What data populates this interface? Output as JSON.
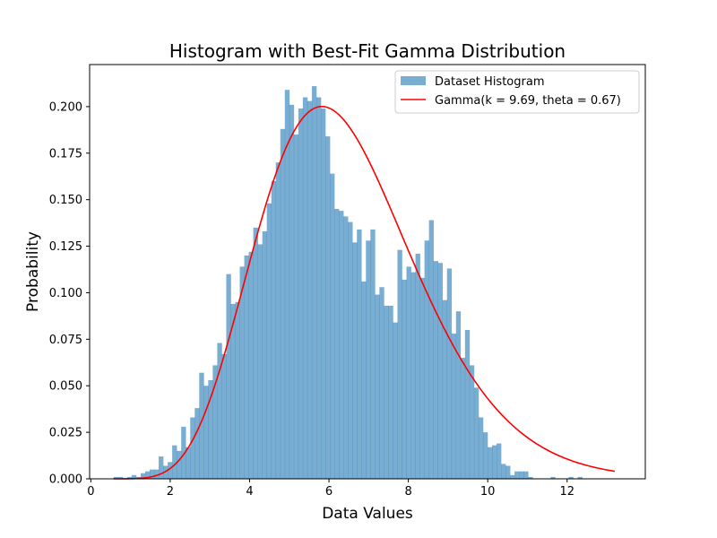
{
  "chart_data": {
    "type": "bar",
    "title": "Histogram with Best-Fit Gamma Distribution",
    "xlabel": "Data Values",
    "ylabel": "Probability",
    "xlim": [
      -0.03,
      13.97
    ],
    "ylim": [
      0,
      0.2226
    ],
    "xticks": [
      0,
      2,
      4,
      6,
      8,
      10,
      12
    ],
    "yticks": [
      0.0,
      0.025,
      0.05,
      0.075,
      0.1,
      0.125,
      0.15,
      0.175,
      0.2
    ],
    "ytick_labels": [
      "0.000",
      "0.025",
      "0.050",
      "0.075",
      "0.100",
      "0.125",
      "0.150",
      "0.175",
      "0.200"
    ],
    "grid": false,
    "legend_position": "top-right",
    "colors": {
      "histogram": "#1f77b4",
      "histogram_alpha": 0.6,
      "curve": "#ff0000"
    },
    "series": [
      {
        "name": "Dataset Histogram",
        "kind": "histogram",
        "x_start": 0.575,
        "bin_width": 0.1135,
        "values": [
          0.001,
          0.001,
          0.0,
          0.001,
          0.002,
          0.001,
          0.003,
          0.004,
          0.005,
          0.005,
          0.012,
          0.007,
          0.009,
          0.018,
          0.015,
          0.028,
          0.017,
          0.033,
          0.038,
          0.057,
          0.05,
          0.053,
          0.061,
          0.073,
          0.067,
          0.11,
          0.094,
          0.095,
          0.114,
          0.12,
          0.122,
          0.135,
          0.126,
          0.133,
          0.148,
          0.16,
          0.17,
          0.188,
          0.209,
          0.201,
          0.185,
          0.199,
          0.205,
          0.203,
          0.211,
          0.205,
          0.199,
          0.184,
          0.164,
          0.145,
          0.144,
          0.141,
          0.138,
          0.127,
          0.134,
          0.106,
          0.128,
          0.134,
          0.099,
          0.103,
          0.093,
          0.093,
          0.084,
          0.123,
          0.107,
          0.114,
          0.111,
          0.121,
          0.108,
          0.128,
          0.139,
          0.117,
          0.116,
          0.096,
          0.113,
          0.078,
          0.09,
          0.065,
          0.08,
          0.061,
          0.049,
          0.033,
          0.025,
          0.017,
          0.018,
          0.019,
          0.008,
          0.007,
          0.002,
          0.004,
          0.004,
          0.004,
          0.001,
          0.0,
          0.0,
          0.0,
          0.0,
          0.001,
          0.0,
          0.0,
          0.0,
          0.001,
          0.0,
          0.001
        ]
      },
      {
        "name": "Gamma(k = 9.69, theta = 0.67)",
        "kind": "curve",
        "k": 9.69,
        "theta": 0.67,
        "x_range": [
          0.57,
          13.2
        ]
      }
    ]
  }
}
